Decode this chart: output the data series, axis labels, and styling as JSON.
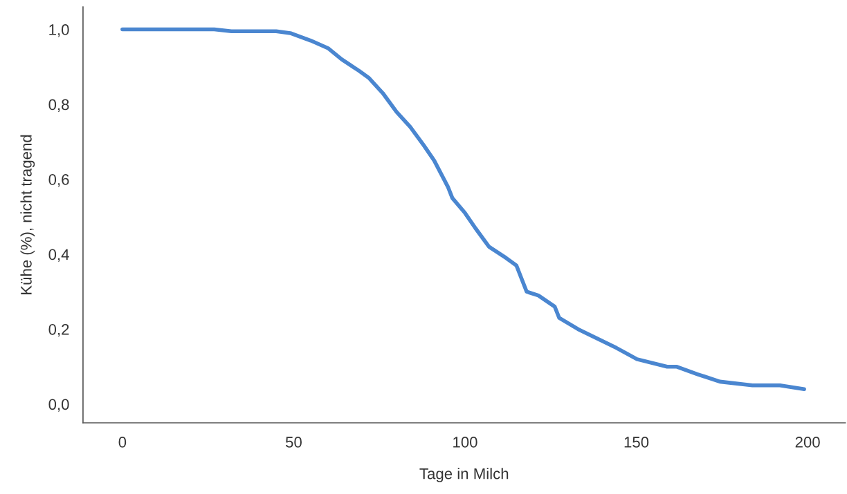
{
  "chart_data": {
    "type": "line",
    "xlabel": "Tage in Milch",
    "ylabel": "Kühe (%), nicht tragend",
    "x": [
      0,
      26.8,
      31.8,
      44.9,
      49,
      52,
      55,
      60,
      64,
      69,
      72,
      76,
      80,
      84,
      88,
      91,
      95,
      96.3,
      100,
      103,
      107,
      112,
      115,
      118,
      121.4,
      126.2,
      127.5,
      133,
      144.2,
      150.2,
      159,
      161.7,
      167.8,
      174.4,
      183.9,
      191.9,
      199
    ],
    "series": [
      {
        "color": "#4a86d0",
        "values": [
          1.0,
          1.0,
          0.995,
          0.995,
          0.99,
          0.98,
          0.97,
          0.95,
          0.92,
          0.89,
          0.87,
          0.83,
          0.78,
          0.74,
          0.69,
          0.65,
          0.58,
          0.55,
          0.51,
          0.47,
          0.42,
          0.39,
          0.37,
          0.3,
          0.29,
          0.26,
          0.23,
          0.2,
          0.15,
          0.12,
          0.1,
          0.1,
          0.08,
          0.06,
          0.05,
          0.05,
          0.04
        ]
      }
    ],
    "xlim": [
      -11.5,
      211
    ],
    "ylim": [
      -0.05,
      1.06
    ],
    "xticks": [
      0,
      50,
      100,
      150,
      200
    ],
    "yticks": [
      {
        "value": 0,
        "label": "0,0"
      },
      {
        "value": 0.2,
        "label": "0,2"
      },
      {
        "value": 0.4,
        "label": "0,4"
      },
      {
        "value": 0.6,
        "label": "0,6"
      },
      {
        "value": 0.8,
        "label": "0,8"
      },
      {
        "value": 1.0,
        "label": "1,0"
      }
    ],
    "grid": false,
    "legend": false,
    "marker": "none",
    "line_style": "solid"
  }
}
